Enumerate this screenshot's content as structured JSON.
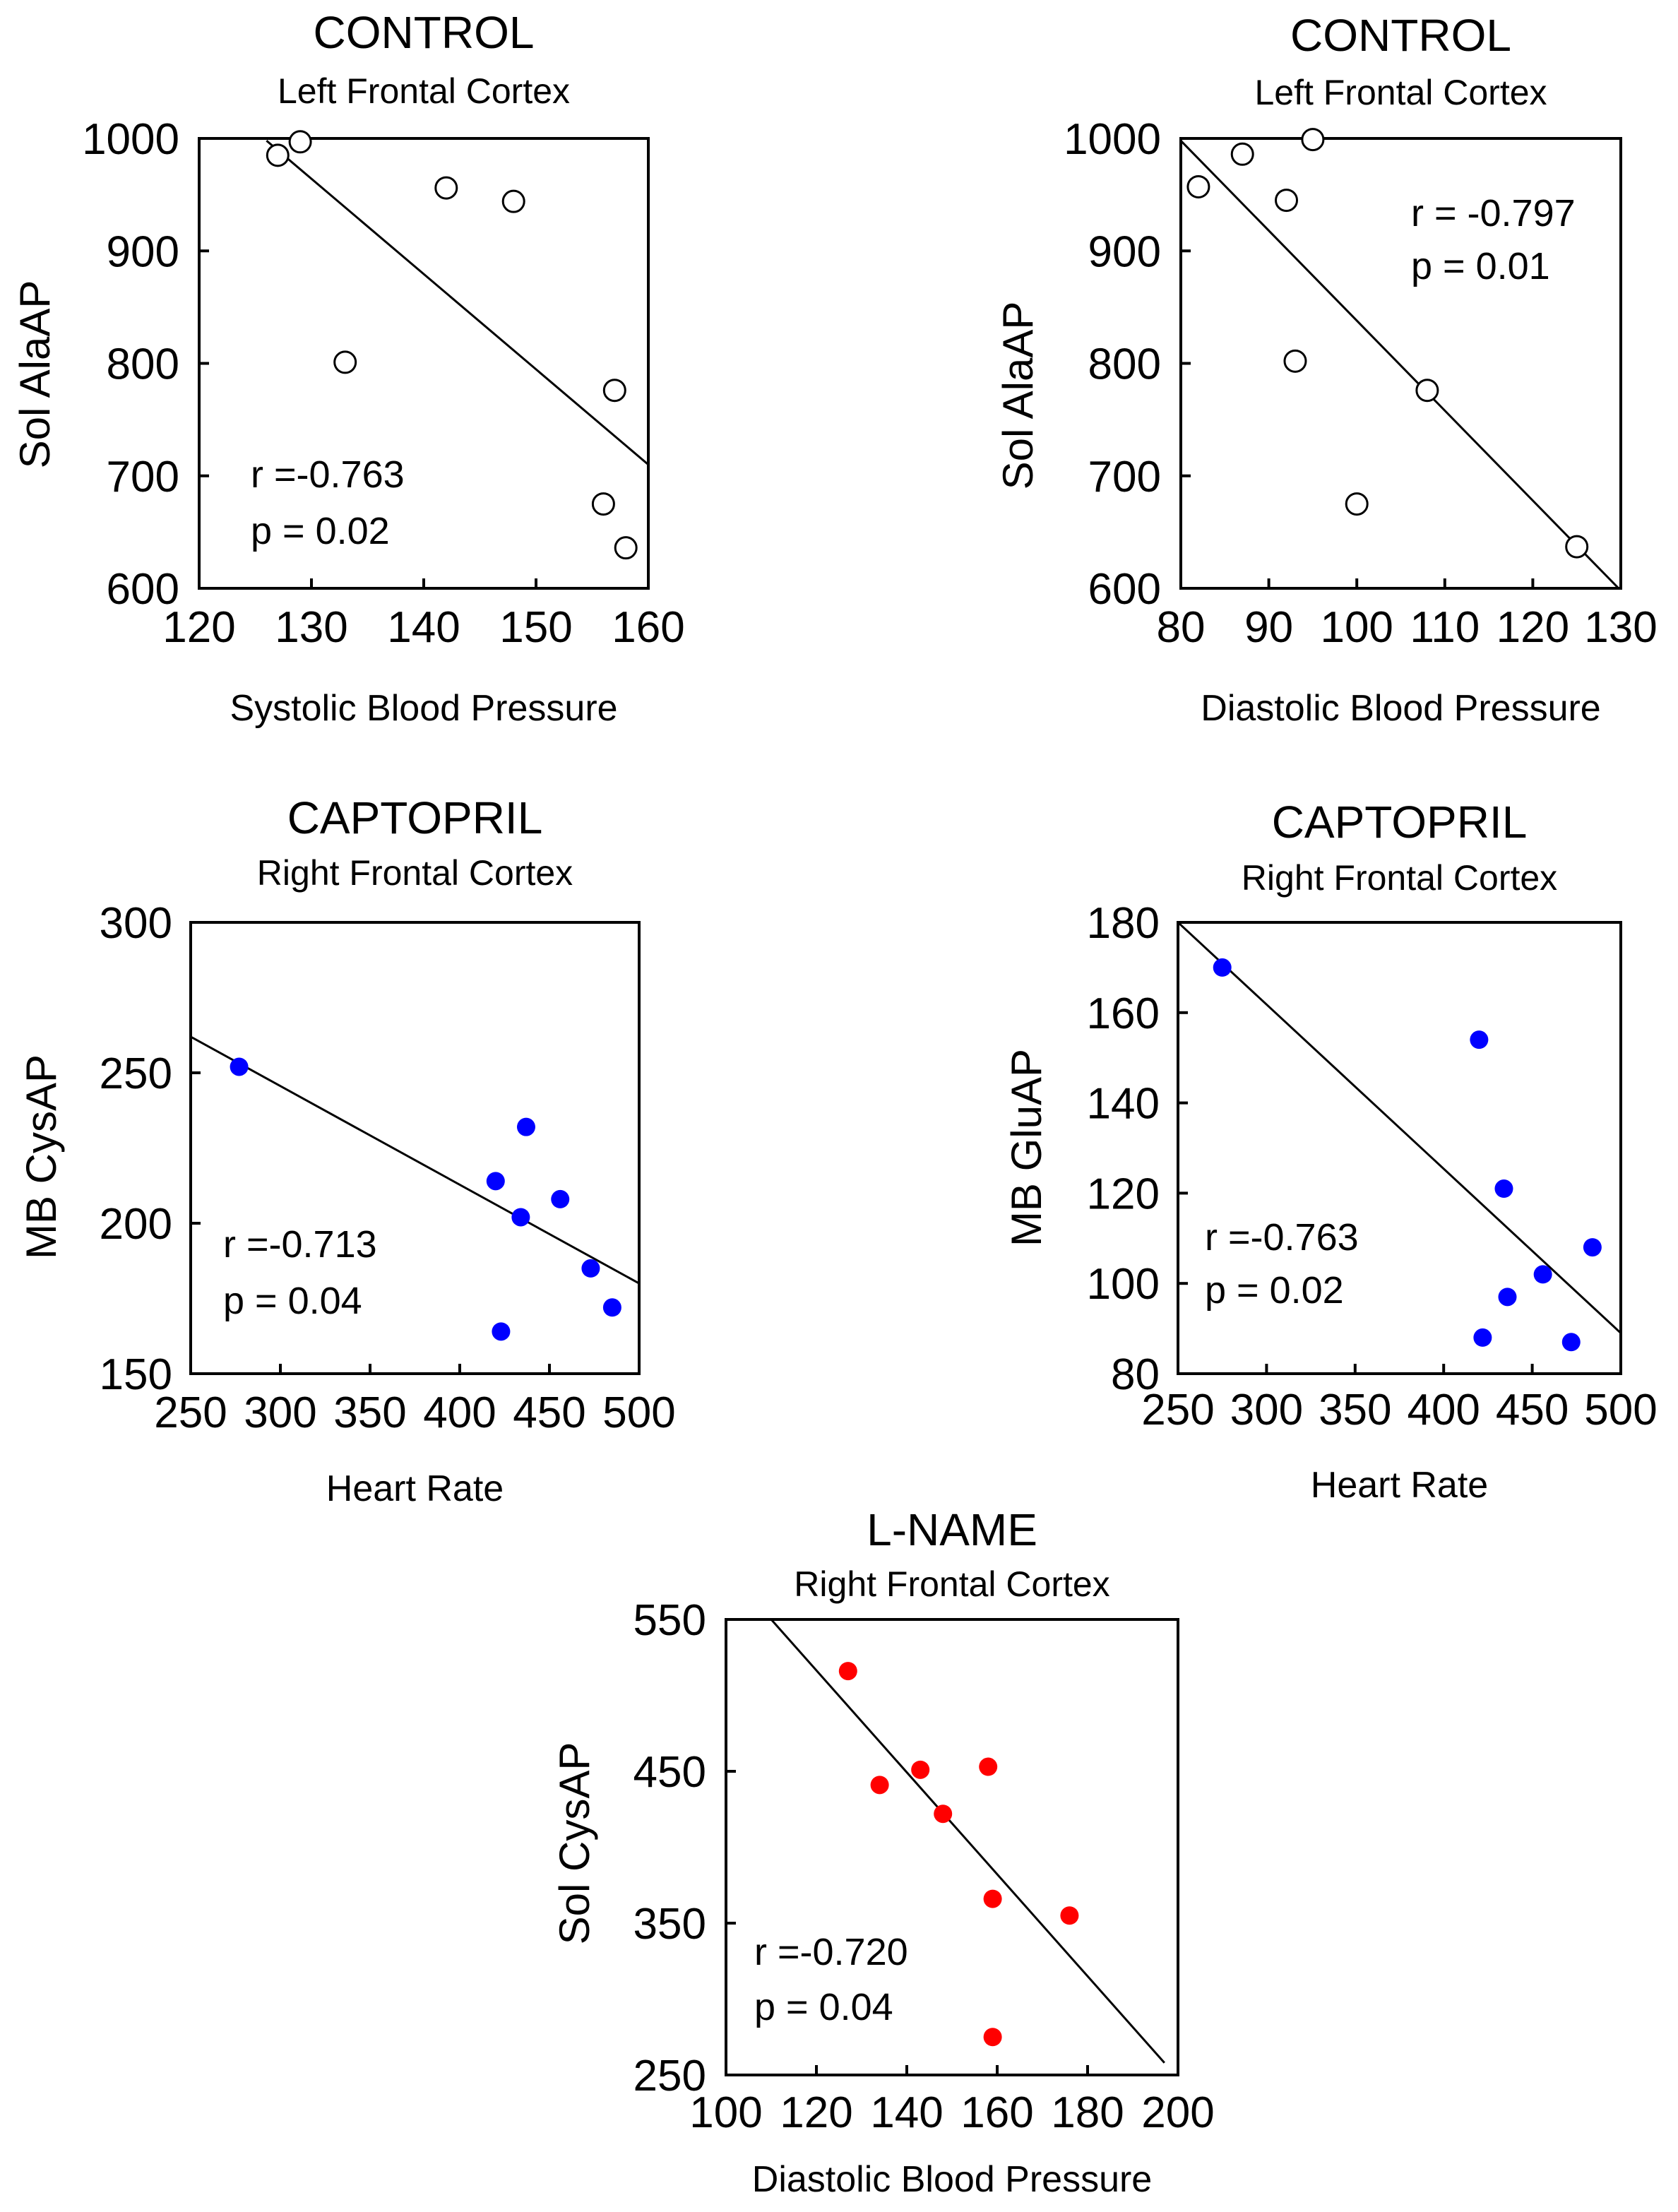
{
  "chart_data": [
    {
      "type": "scatter",
      "title": "CONTROL",
      "subtitle": "Left Frontal Cortex",
      "xlabel": "Systolic Blood Pressure",
      "ylabel": "Sol AlaAP",
      "xlim": [
        120,
        160
      ],
      "ylim": [
        600,
        1000
      ],
      "xticks": [
        120,
        130,
        140,
        150,
        160
      ],
      "yticks": [
        600,
        700,
        800,
        900,
        1000
      ],
      "marker": "open-circle",
      "marker_color": "#000000",
      "points": [
        {
          "x": 127,
          "y": 985
        },
        {
          "x": 129,
          "y": 997
        },
        {
          "x": 133,
          "y": 801
        },
        {
          "x": 142,
          "y": 956
        },
        {
          "x": 148,
          "y": 944
        },
        {
          "x": 157,
          "y": 776
        },
        {
          "x": 156,
          "y": 675
        },
        {
          "x": 158,
          "y": 636
        }
      ],
      "fit": {
        "x": [
          126,
          160
        ],
        "y": [
          998,
          710
        ]
      },
      "annotations": [
        "r =-0.763",
        "p = 0.02"
      ]
    },
    {
      "type": "scatter",
      "title": "CONTROL",
      "subtitle": "Left Frontal Cortex",
      "xlabel": "Diastolic Blood Pressure",
      "ylabel": "Sol AlaAP",
      "xlim": [
        80,
        130
      ],
      "ylim": [
        600,
        1000
      ],
      "xticks": [
        80,
        90,
        100,
        110,
        120,
        130
      ],
      "yticks": [
        600,
        700,
        800,
        900,
        1000
      ],
      "marker": "open-circle",
      "marker_color": "#000000",
      "points": [
        {
          "x": 82,
          "y": 957
        },
        {
          "x": 87,
          "y": 986
        },
        {
          "x": 92,
          "y": 945
        },
        {
          "x": 93,
          "y": 802
        },
        {
          "x": 95,
          "y": 999
        },
        {
          "x": 100,
          "y": 675
        },
        {
          "x": 108,
          "y": 776
        },
        {
          "x": 125,
          "y": 637
        }
      ],
      "fit": {
        "x": [
          80,
          130
        ],
        "y": [
          998,
          598
        ]
      },
      "annotations": [
        "r = -0.797",
        "p = 0.01"
      ]
    },
    {
      "type": "scatter",
      "title": "CAPTOPRIL",
      "subtitle": "Right Frontal Cortex",
      "xlabel": "Heart Rate",
      "ylabel": "MB CysAP",
      "xlim": [
        250,
        500
      ],
      "ylim": [
        150,
        300
      ],
      "xticks": [
        250,
        300,
        350,
        400,
        450,
        500
      ],
      "yticks": [
        150,
        200,
        250,
        300
      ],
      "marker": "filled-circle",
      "marker_color": "#0000ff",
      "points": [
        {
          "x": 277,
          "y": 252
        },
        {
          "x": 420,
          "y": 214
        },
        {
          "x": 437,
          "y": 232
        },
        {
          "x": 434,
          "y": 202
        },
        {
          "x": 456,
          "y": 208
        },
        {
          "x": 473,
          "y": 185
        },
        {
          "x": 423,
          "y": 164
        },
        {
          "x": 485,
          "y": 172
        }
      ],
      "fit": {
        "x": [
          250,
          500
        ],
        "y": [
          262,
          180
        ]
      },
      "annotations": [
        "r =-0.713",
        "p = 0.04"
      ]
    },
    {
      "type": "scatter",
      "title": "CAPTOPRIL",
      "subtitle": "Right Frontal Cortex",
      "xlabel": "Heart Rate",
      "ylabel": "MB GluAP",
      "xlim": [
        250,
        500
      ],
      "ylim": [
        80,
        180
      ],
      "xticks": [
        250,
        300,
        350,
        400,
        450,
        500
      ],
      "yticks": [
        80,
        100,
        120,
        140,
        160,
        180
      ],
      "marker": "filled-circle",
      "marker_color": "#0000ff",
      "points": [
        {
          "x": 275,
          "y": 170
        },
        {
          "x": 420,
          "y": 154
        },
        {
          "x": 434,
          "y": 121
        },
        {
          "x": 436,
          "y": 97
        },
        {
          "x": 422,
          "y": 88
        },
        {
          "x": 456,
          "y": 102
        },
        {
          "x": 472,
          "y": 87
        },
        {
          "x": 484,
          "y": 108
        }
      ],
      "fit": {
        "x": [
          250,
          500
        ],
        "y": [
          180,
          89
        ]
      },
      "annotations": [
        "r =-0.763",
        "p = 0.02"
      ]
    },
    {
      "type": "scatter",
      "title": "L-NAME",
      "subtitle": "Right Frontal Cortex",
      "xlabel": "Diastolic Blood Pressure",
      "ylabel": "Sol CysAP",
      "xlim": [
        100,
        200
      ],
      "ylim": [
        250,
        550
      ],
      "xticks": [
        100,
        120,
        140,
        160,
        180,
        200
      ],
      "yticks": [
        250,
        350,
        450,
        550
      ],
      "marker": "filled-circle",
      "marker_color": "#ff0000",
      "points": [
        {
          "x": 127,
          "y": 516
        },
        {
          "x": 134,
          "y": 441
        },
        {
          "x": 143,
          "y": 451
        },
        {
          "x": 148,
          "y": 422
        },
        {
          "x": 158,
          "y": 453
        },
        {
          "x": 159,
          "y": 366
        },
        {
          "x": 176,
          "y": 355
        },
        {
          "x": 159,
          "y": 275
        }
      ],
      "fit": {
        "x": [
          110,
          197
        ],
        "y": [
          550,
          258
        ]
      },
      "annotations": [
        "r =-0.720",
        "p = 0.04"
      ]
    }
  ]
}
